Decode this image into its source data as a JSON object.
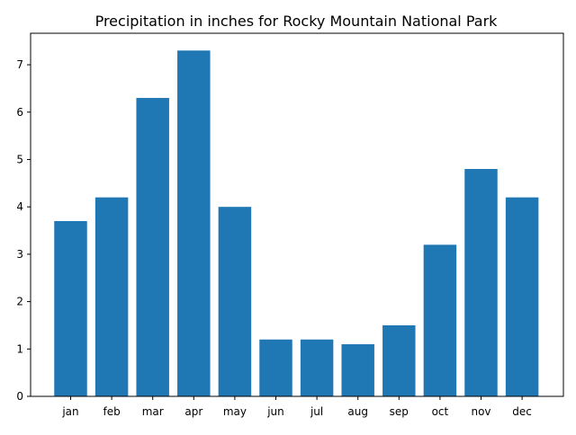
{
  "chart_data": {
    "type": "bar",
    "title": "Precipitation in inches for Rocky Mountain National Park",
    "xlabel": "",
    "ylabel": "",
    "categories": [
      "jan",
      "feb",
      "mar",
      "apr",
      "may",
      "jun",
      "jul",
      "aug",
      "sep",
      "oct",
      "nov",
      "dec"
    ],
    "values": [
      3.7,
      4.2,
      6.3,
      7.3,
      4.0,
      1.2,
      1.2,
      1.1,
      1.5,
      3.2,
      4.8,
      4.2
    ],
    "ylim": [
      0,
      7.665
    ],
    "yticks": [
      "0",
      "1",
      "2",
      "3",
      "4",
      "5",
      "6",
      "7"
    ],
    "bar_color": "#1f77b4",
    "grid": false,
    "legend": "none"
  }
}
